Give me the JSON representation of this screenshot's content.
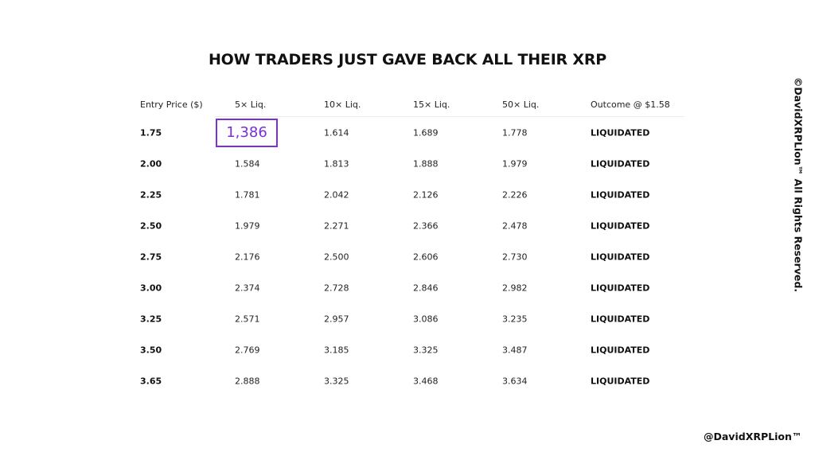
{
  "header": {
    "title": "HOW TRADERS JUST GAVE BACK ALL THEIR XRP"
  },
  "table": {
    "columns": [
      "Entry Price ($)",
      "5× Liq.",
      "10× Liq.",
      "15× Liq.",
      "50× Liq.",
      "Outcome @ $1.58"
    ],
    "rows": [
      [
        "1.75",
        "1,386",
        "1.614",
        "1.689",
        "1.778",
        "LIQUIDATED"
      ],
      [
        "2.00",
        "1.584",
        "1.813",
        "1.888",
        "1.979",
        "LIQUIDATED"
      ],
      [
        "2.25",
        "1.781",
        "2.042",
        "2.126",
        "2.226",
        "LIQUIDATED"
      ],
      [
        "2.50",
        "1.979",
        "2.271",
        "2.366",
        "2.478",
        "LIQUIDATED"
      ],
      [
        "2.75",
        "2.176",
        "2.500",
        "2.606",
        "2.730",
        "LIQUIDATED"
      ],
      [
        "3.00",
        "2.374",
        "2.728",
        "2.846",
        "2.982",
        "LIQUIDATED"
      ],
      [
        "3.25",
        "2.571",
        "2.957",
        "3.086",
        "3.235",
        "LIQUIDATED"
      ],
      [
        "3.50",
        "2.769",
        "3.185",
        "3.325",
        "3.487",
        "LIQUIDATED"
      ],
      [
        "3.65",
        "2.888",
        "3.325",
        "3.468",
        "3.634",
        "LIQUIDATED"
      ]
    ]
  },
  "side_text": "©DavidXRPLion™ All Rights Reserved.",
  "handle": "@DavidXRPLion™"
}
